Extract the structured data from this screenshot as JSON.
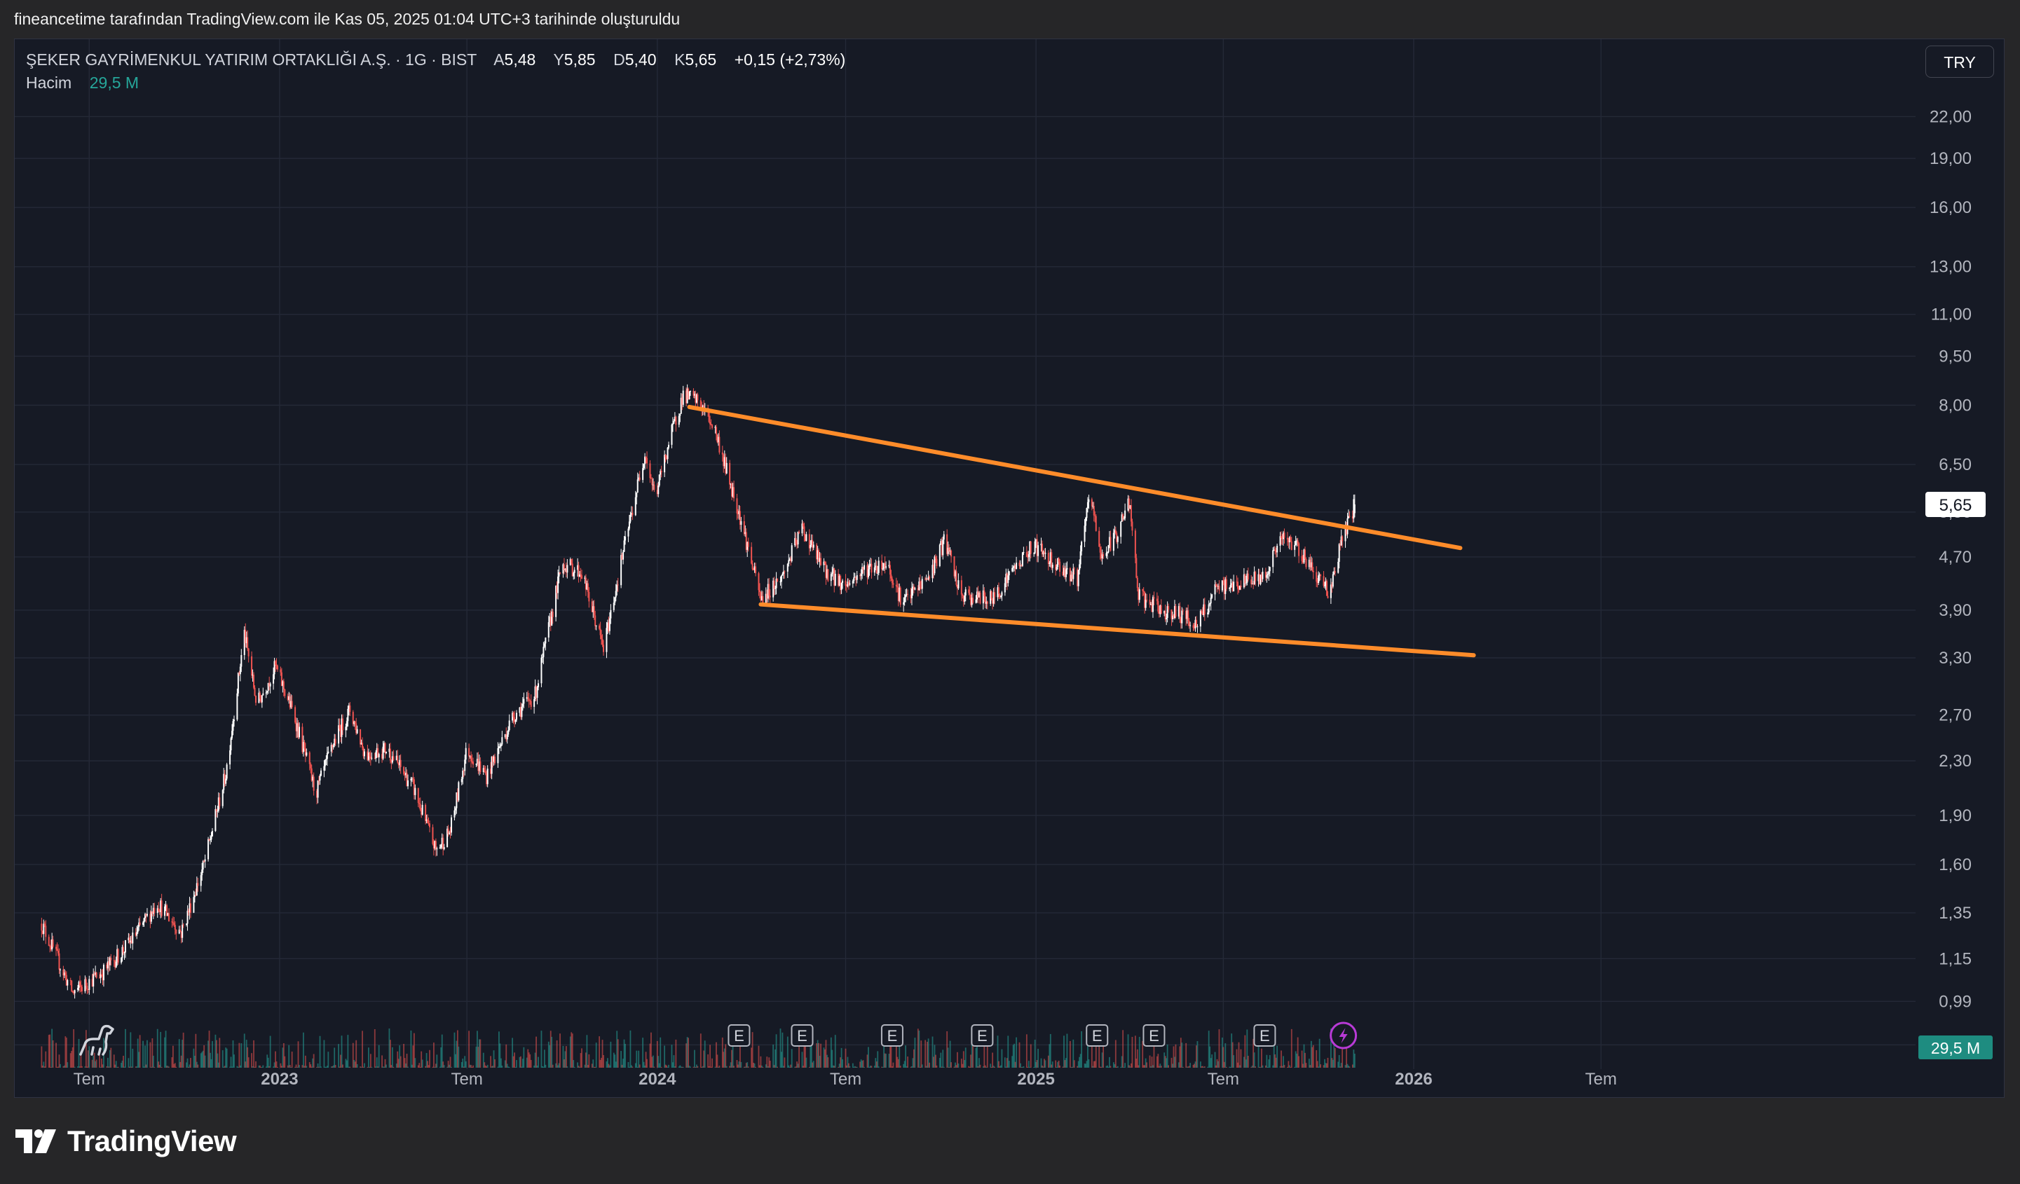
{
  "caption": "fineancetime tarafından TradingView.com ile Kas 05, 2025 01:04 UTC+3 tarihinde oluşturuldu",
  "brand": "TradingView",
  "currency_button": "TRY",
  "legend": {
    "symbol": "ŞEKER GAYRİMENKUL YATIRIM ORTAKLIĞI A.Ş. · 1G · BIST",
    "open_label": "A",
    "open": "5,48",
    "high_label": "Y",
    "high": "5,85",
    "low_label": "D",
    "low": "5,40",
    "close_label": "K",
    "close": "5,65",
    "change": "+0,15 (+2,73%)",
    "volume_label": "Hacim",
    "volume": "29,5 M"
  },
  "colors": {
    "background": "#161a25",
    "up": "#ffffff",
    "down": "#ef5350",
    "trendline": "#ff8c2a",
    "volume_up": "#26a69a",
    "volume_down": "#ef5350"
  },
  "chart_data": {
    "type": "candlestick",
    "scale": "log",
    "ylim": [
      0.82,
      24.0
    ],
    "y_ticks": [
      "22,00",
      "19,00",
      "16,00",
      "13,00",
      "11,00",
      "9,50",
      "8,00",
      "6,50",
      "5,50",
      "4,70",
      "3,90",
      "3,30",
      "2,70",
      "2,30",
      "1,90",
      "1,60",
      "1,35",
      "1,15",
      "0,99",
      "0,85"
    ],
    "y_tick_values": [
      22,
      19,
      16,
      13,
      11,
      9.5,
      8,
      6.5,
      5.5,
      4.7,
      3.9,
      3.3,
      2.7,
      2.3,
      1.9,
      1.6,
      1.35,
      1.15,
      0.99,
      0.85
    ],
    "x_range": [
      "2022-04-20",
      "2027-05-01"
    ],
    "x_ticks": [
      {
        "date": "2022-07-01",
        "label": "Tem",
        "bold": false
      },
      {
        "date": "2023-01-01",
        "label": "2023",
        "bold": true
      },
      {
        "date": "2023-07-01",
        "label": "Tem",
        "bold": false
      },
      {
        "date": "2024-01-01",
        "label": "2024",
        "bold": true
      },
      {
        "date": "2024-07-01",
        "label": "Tem",
        "bold": false
      },
      {
        "date": "2025-01-01",
        "label": "2025",
        "bold": true
      },
      {
        "date": "2025-07-01",
        "label": "Tem",
        "bold": false
      },
      {
        "date": "2026-01-01",
        "label": "2026",
        "bold": true
      },
      {
        "date": "2026-07-01",
        "label": "Tem",
        "bold": false
      }
    ],
    "last_price_label": "5,65",
    "last_price": 5.65,
    "volume_last_label": "29,5 M",
    "price_path": [
      [
        "2022-05-16",
        1.3
      ],
      [
        "2022-06-15",
        1.02
      ],
      [
        "2022-07-15",
        1.1
      ],
      [
        "2022-08-10",
        1.22
      ],
      [
        "2022-09-05",
        1.4
      ],
      [
        "2022-09-28",
        1.26
      ],
      [
        "2022-10-20",
        1.6
      ],
      [
        "2022-11-10",
        2.2
      ],
      [
        "2022-11-28",
        3.6
      ],
      [
        "2022-12-10",
        2.8
      ],
      [
        "2022-12-28",
        3.2
      ],
      [
        "2023-01-15",
        2.7
      ],
      [
        "2023-02-05",
        2.05
      ],
      [
        "2023-02-22",
        2.45
      ],
      [
        "2023-03-10",
        2.75
      ],
      [
        "2023-03-25",
        2.35
      ],
      [
        "2023-04-15",
        2.4
      ],
      [
        "2023-05-10",
        2.1
      ],
      [
        "2023-06-01",
        1.68
      ],
      [
        "2023-06-15",
        1.8
      ],
      [
        "2023-07-01",
        2.4
      ],
      [
        "2023-07-20",
        2.18
      ],
      [
        "2023-08-15",
        2.7
      ],
      [
        "2023-09-05",
        2.9
      ],
      [
        "2023-10-01",
        4.6
      ],
      [
        "2023-10-20",
        4.45
      ],
      [
        "2023-11-10",
        3.4
      ],
      [
        "2023-11-28",
        4.7
      ],
      [
        "2023-12-20",
        6.8
      ],
      [
        "2023-12-30",
        5.8
      ],
      [
        "2024-01-12",
        7.0
      ],
      [
        "2024-01-26",
        8.3
      ],
      [
        "2024-02-10",
        8.1
      ],
      [
        "2024-02-25",
        7.4
      ],
      [
        "2024-03-10",
        6.2
      ],
      [
        "2024-03-20",
        5.5
      ],
      [
        "2024-04-10",
        4.05
      ],
      [
        "2024-05-01",
        4.4
      ],
      [
        "2024-05-20",
        5.2
      ],
      [
        "2024-06-10",
        4.5
      ],
      [
        "2024-06-30",
        4.25
      ],
      [
        "2024-07-20",
        4.5
      ],
      [
        "2024-08-10",
        4.6
      ],
      [
        "2024-08-25",
        4.0
      ],
      [
        "2024-09-20",
        4.4
      ],
      [
        "2024-10-05",
        5.0
      ],
      [
        "2024-10-20",
        4.1
      ],
      [
        "2024-11-20",
        4.05
      ],
      [
        "2024-12-10",
        4.5
      ],
      [
        "2024-12-30",
        4.9
      ],
      [
        "2025-01-20",
        4.6
      ],
      [
        "2025-02-10",
        4.35
      ],
      [
        "2025-02-22",
        5.9
      ],
      [
        "2025-03-05",
        4.7
      ],
      [
        "2025-03-20",
        5.1
      ],
      [
        "2025-04-01",
        5.7
      ],
      [
        "2025-04-10",
        4.1
      ],
      [
        "2025-05-01",
        3.9
      ],
      [
        "2025-05-20",
        3.85
      ],
      [
        "2025-06-05",
        3.7
      ],
      [
        "2025-06-25",
        4.2
      ],
      [
        "2025-07-20",
        4.3
      ],
      [
        "2025-08-10",
        4.4
      ],
      [
        "2025-08-25",
        5.0
      ],
      [
        "2025-09-10",
        4.9
      ],
      [
        "2025-09-25",
        4.5
      ],
      [
        "2025-10-12",
        4.15
      ],
      [
        "2025-10-22",
        4.9
      ],
      [
        "2025-11-05",
        5.65
      ]
    ],
    "trendlines": [
      {
        "name": "upper",
        "from": [
          "2024-02-01",
          7.95
        ],
        "to": [
          "2026-02-15",
          4.85
        ]
      },
      {
        "name": "lower",
        "from": [
          "2024-04-10",
          3.98
        ],
        "to": [
          "2026-02-28",
          3.33
        ]
      }
    ],
    "earnings_markers": [
      {
        "date": "2024-03-20",
        "label": "E"
      },
      {
        "date": "2024-05-20",
        "label": "E"
      },
      {
        "date": "2024-08-15",
        "label": "E"
      },
      {
        "date": "2024-11-10",
        "label": "E"
      },
      {
        "date": "2025-03-01",
        "label": "E"
      },
      {
        "date": "2025-04-25",
        "label": "E"
      },
      {
        "date": "2025-08-10",
        "label": "E"
      }
    ],
    "lightning_marker": {
      "date": "2025-10-25"
    }
  }
}
